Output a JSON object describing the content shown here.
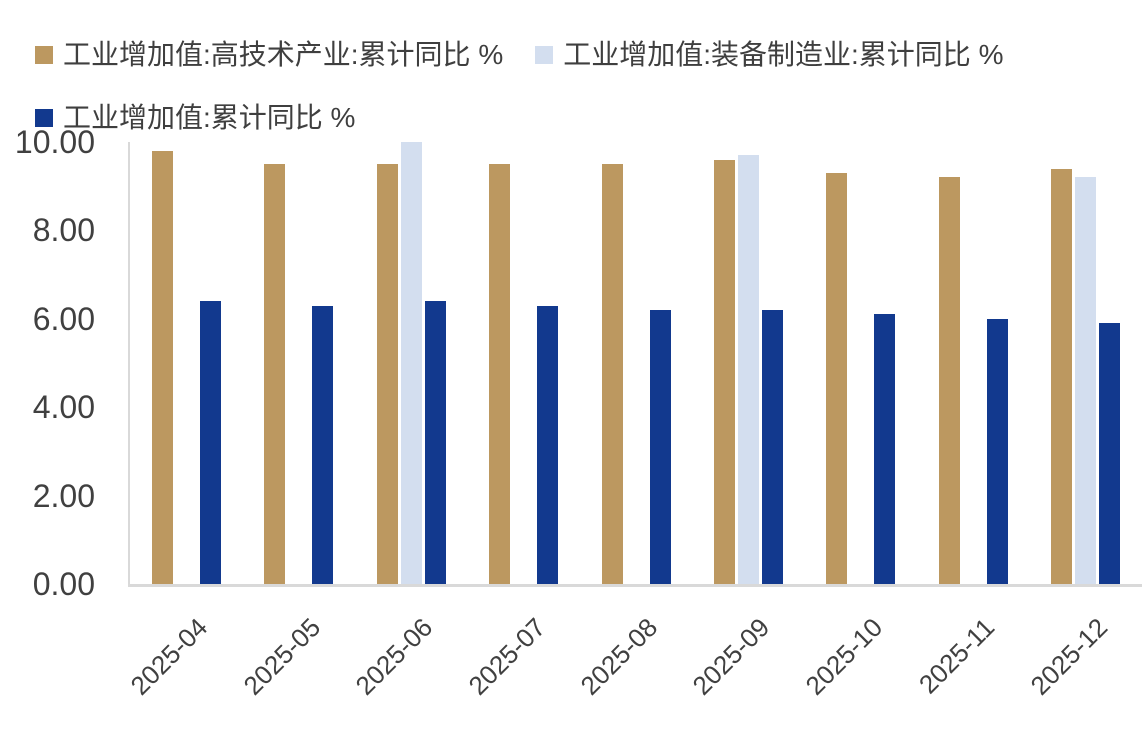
{
  "legend": {
    "items": [
      {
        "key": "high-tech",
        "label": "工业增加值:高技术产业:累计同比 %",
        "color": "#BC9860"
      },
      {
        "key": "equipment",
        "label": "工业增加值:装备制造业:累计同比 %",
        "color": "#D3DEEF"
      },
      {
        "key": "overall",
        "label": "工业增加值:累计同比 %",
        "color": "#12398E"
      }
    ]
  },
  "chart_data": {
    "type": "bar",
    "title": "",
    "xlabel": "",
    "ylabel": "",
    "categories": [
      "2025-04",
      "2025-05",
      "2025-06",
      "2025-07",
      "2025-08",
      "2025-09",
      "2025-10",
      "2025-11",
      "2025-12"
    ],
    "series": [
      {
        "key": "high-tech",
        "name": "工业增加值:高技术产业:累计同比 %",
        "color": "#BC9860",
        "values": [
          9.8,
          9.5,
          9.5,
          9.5,
          9.5,
          9.6,
          9.3,
          9.2,
          9.4
        ]
      },
      {
        "key": "equipment",
        "name": "工业增加值:装备制造业:累计同比 %",
        "color": "#D3DEEF",
        "values": [
          null,
          null,
          10.0,
          null,
          null,
          9.7,
          null,
          null,
          9.2
        ]
      },
      {
        "key": "overall",
        "name": "工业增加值:累计同比 %",
        "color": "#12398E",
        "values": [
          6.4,
          6.3,
          6.4,
          6.3,
          6.2,
          6.2,
          6.1,
          6.0,
          5.9
        ]
      }
    ],
    "ylim": [
      0,
      10
    ],
    "y_ticks": [
      "0.00",
      "2.00",
      "4.00",
      "6.00",
      "8.00",
      "10.00"
    ],
    "grid": false,
    "legend_position": "top-left",
    "axis_color": "#d9d9d9",
    "text_color": "#404040"
  }
}
